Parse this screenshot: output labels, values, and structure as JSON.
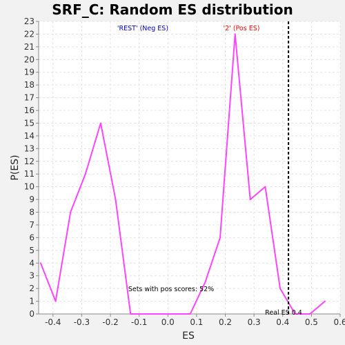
{
  "chart_data": {
    "type": "line",
    "title": "SRF_C: Random ES distribution",
    "xlabel": "ES",
    "ylabel": "P(ES)",
    "xlim": [
      -0.45,
      0.6
    ],
    "ylim": [
      0,
      23
    ],
    "x_ticks": [
      "-0.4",
      "-0.3",
      "-0.2",
      "-0.1",
      "0.0",
      "0.1",
      "0.2",
      "0.3",
      "0.4",
      "0.5",
      "0.6"
    ],
    "x_tick_values": [
      -0.4,
      -0.3,
      -0.2,
      -0.1,
      0.0,
      0.1,
      0.2,
      0.3,
      0.4,
      0.5,
      0.6
    ],
    "y_ticks": [
      0,
      1,
      2,
      3,
      4,
      5,
      6,
      7,
      8,
      9,
      10,
      11,
      12,
      13,
      14,
      15,
      16,
      17,
      18,
      19,
      20,
      21,
      22,
      23
    ],
    "grid": true,
    "series": [
      {
        "color": "#ff44ff",
        "x": [
          -0.443,
          -0.391,
          -0.339,
          -0.287,
          -0.234,
          -0.182,
          -0.13,
          -0.078,
          -0.026,
          0.026,
          0.078,
          0.13,
          0.182,
          0.234,
          0.287,
          0.339,
          0.391,
          0.443,
          0.495,
          0.547
        ],
        "y": [
          4,
          1,
          8,
          11,
          15,
          9,
          0,
          0,
          0,
          0,
          0,
          2.5,
          6,
          22,
          9,
          10,
          2,
          0,
          0,
          1
        ]
      }
    ],
    "real_es": 0.42,
    "annotations": {
      "neg_label": "'REST' (Neg ES)",
      "pos_label": "'2' (Pos ES)",
      "pos_scores": "Sets with pos scores: 52%",
      "real_es_label": "Real ES 0.4"
    },
    "colors": {
      "neg_label": "#0000cc",
      "pos_label": "#ff0000",
      "line": "#ff44ff",
      "real_es_line": "#000000"
    }
  }
}
